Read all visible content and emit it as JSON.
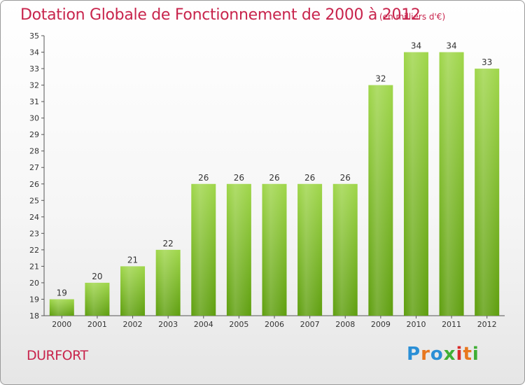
{
  "header": {
    "title": "Dotation Globale de Fonctionnement de 2000 à 2012",
    "unit": "(en milliers d'€)"
  },
  "footer": {
    "city": "DURFORT",
    "logo": {
      "letters": [
        "P",
        "r",
        "o",
        "x",
        "i",
        "t",
        "i"
      ],
      "colors": [
        "#2a8fd6",
        "#e8771e",
        "#2a8fd6",
        "#3fae34",
        "#d92b2b",
        "#e8771e",
        "#3fae34"
      ]
    }
  },
  "chart_data": {
    "type": "bar",
    "categories": [
      "2000",
      "2001",
      "2002",
      "2003",
      "2004",
      "2005",
      "2006",
      "2007",
      "2008",
      "2009",
      "2010",
      "2011",
      "2012"
    ],
    "values": [
      19,
      20,
      21,
      22,
      26,
      26,
      26,
      26,
      26,
      32,
      34,
      34,
      33
    ],
    "ylim": [
      18,
      35
    ],
    "yticks": [
      18,
      19,
      20,
      21,
      22,
      23,
      24,
      25,
      26,
      27,
      28,
      29,
      30,
      31,
      32,
      33,
      34,
      35
    ],
    "grid": false,
    "bar_color_light": "#9fd64a",
    "bar_color_dark": "#5e9e0e"
  }
}
